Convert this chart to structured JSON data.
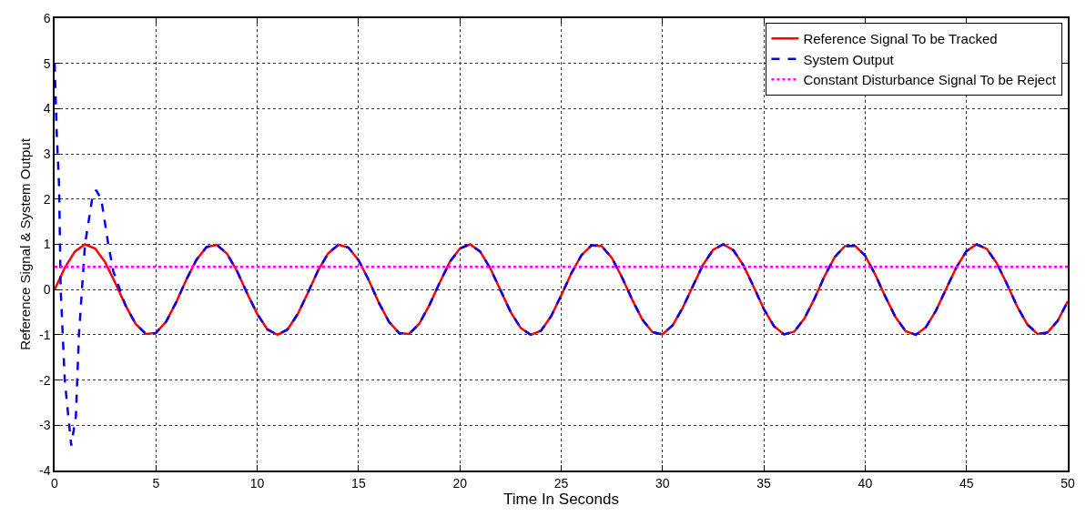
{
  "chart_data": {
    "type": "line",
    "xlabel": "Time In Seconds",
    "ylabel": "Reference Signal & System Output",
    "xlim": [
      0,
      50
    ],
    "xticks": [
      0,
      5,
      10,
      15,
      20,
      25,
      30,
      35,
      40,
      45,
      50
    ],
    "ylim": [
      -4,
      6
    ],
    "yticks": [
      -4,
      -3,
      -2,
      -1,
      0,
      1,
      2,
      3,
      4,
      5,
      6
    ],
    "grid": true,
    "legend": "top right",
    "series": [
      {
        "name": "Reference Signal To be Tracked",
        "color": "#ff0000",
        "line_style": "solid",
        "x": [
          0,
          0.5,
          1,
          1.5,
          2,
          2.5,
          3,
          3.5,
          4,
          4.5,
          5,
          5.5,
          6,
          6.5,
          7,
          7.5,
          8,
          8.5,
          9,
          9.5,
          10,
          10.5,
          11,
          11.5,
          12,
          12.5,
          13,
          13.5,
          14,
          14.5,
          15,
          15.5,
          16,
          16.5,
          17,
          17.5,
          18,
          18.5,
          19,
          19.5,
          20,
          20.5,
          21,
          21.5,
          22,
          22.5,
          23,
          23.5,
          24,
          24.5,
          25,
          25.5,
          26,
          26.5,
          27,
          27.5,
          28,
          28.5,
          29,
          29.5,
          30,
          30.5,
          31,
          31.5,
          32,
          32.5,
          33,
          33.5,
          34,
          34.5,
          35,
          35.5,
          36,
          36.5,
          37,
          37.5,
          38,
          38.5,
          39,
          39.5,
          40,
          40.5,
          41,
          41.5,
          42,
          42.5,
          43,
          43.5,
          44,
          44.5,
          45,
          45.5,
          46,
          46.5,
          47,
          47.5,
          48,
          48.5,
          49,
          49.5,
          50
        ],
        "values": [
          0,
          0.48,
          0.84,
          1.0,
          0.91,
          0.6,
          0.14,
          -0.35,
          -0.76,
          -0.98,
          -0.96,
          -0.71,
          -0.28,
          0.22,
          0.66,
          0.94,
          0.99,
          0.8,
          0.41,
          -0.08,
          -0.54,
          -0.88,
          -1.0,
          -0.88,
          -0.54,
          -0.07,
          0.42,
          0.8,
          0.99,
          0.93,
          0.65,
          0.21,
          -0.29,
          -0.71,
          -0.96,
          -0.98,
          -0.75,
          -0.34,
          0.15,
          0.61,
          0.91,
          1.0,
          0.84,
          0.47,
          -0.01,
          -0.49,
          -0.85,
          -1.0,
          -0.91,
          -0.59,
          -0.13,
          0.36,
          0.76,
          0.98,
          0.96,
          0.7,
          0.27,
          -0.22,
          -0.66,
          -0.94,
          -0.99,
          -0.79,
          -0.4,
          0.08,
          0.55,
          0.88,
          1.0,
          0.87,
          0.53,
          0.06,
          -0.43,
          -0.81,
          -0.99,
          -0.93,
          -0.64,
          -0.2,
          0.3,
          0.72,
          0.96,
          0.97,
          0.75,
          0.33,
          -0.16,
          -0.61,
          -0.92,
          -1.0,
          -0.83,
          -0.46,
          0.02,
          0.49,
          0.85,
          1.0,
          0.9,
          0.58,
          0.12,
          -0.37,
          -0.77,
          -0.98,
          -0.95,
          -0.69,
          -0.26
        ]
      },
      {
        "name": "System Output",
        "color": "#0000ff",
        "line_style": "dashed",
        "x": [
          0,
          0.1,
          0.22,
          0.3,
          0.5,
          0.82,
          1.05,
          1.2,
          1.5,
          1.85,
          2.05,
          2.3,
          2.65,
          2.9,
          3.5,
          4,
          4.5,
          5,
          5.5,
          6,
          6.5,
          7,
          7.5,
          8,
          8.5,
          9,
          9.5,
          10,
          10.5,
          11,
          11.5,
          12,
          12.5,
          13,
          13.5,
          14,
          14.5,
          15,
          15.5,
          16,
          16.5,
          17,
          17.5,
          18,
          18.5,
          19,
          19.5,
          20,
          20.5,
          21,
          21.5,
          22,
          22.5,
          23,
          23.5,
          24,
          24.5,
          25,
          25.5,
          26,
          26.5,
          27,
          27.5,
          28,
          28.5,
          29,
          29.5,
          30,
          30.5,
          31,
          31.5,
          32,
          32.5,
          33,
          33.5,
          34,
          34.5,
          35,
          35.5,
          36,
          36.5,
          37,
          37.5,
          38,
          38.5,
          39,
          39.5,
          40,
          40.5,
          41,
          41.5,
          42,
          42.5,
          43,
          43.5,
          44,
          44.5,
          45,
          45.5,
          46,
          46.5,
          47,
          47.5,
          48,
          48.5,
          49,
          49.5,
          50
        ],
        "values": [
          5,
          3.5,
          2.3,
          0,
          -2,
          -3.45,
          -2.8,
          -1,
          1,
          2,
          2.2,
          2,
          1,
          0.4,
          -0.35,
          -0.76,
          -0.98,
          -0.96,
          -0.71,
          -0.28,
          0.22,
          0.66,
          0.94,
          0.99,
          0.8,
          0.41,
          -0.08,
          -0.54,
          -0.88,
          -1.0,
          -0.88,
          -0.54,
          -0.07,
          0.42,
          0.8,
          0.99,
          0.93,
          0.65,
          0.21,
          -0.29,
          -0.71,
          -0.96,
          -0.98,
          -0.75,
          -0.34,
          0.15,
          0.61,
          0.91,
          1.0,
          0.84,
          0.47,
          -0.01,
          -0.49,
          -0.85,
          -1.0,
          -0.91,
          -0.59,
          -0.13,
          0.36,
          0.76,
          0.98,
          0.96,
          0.7,
          0.27,
          -0.22,
          -0.66,
          -0.94,
          -0.99,
          -0.79,
          -0.4,
          0.08,
          0.55,
          0.88,
          1.0,
          0.87,
          0.53,
          0.06,
          -0.43,
          -0.81,
          -0.99,
          -0.93,
          -0.64,
          -0.2,
          0.3,
          0.72,
          0.96,
          0.97,
          0.75,
          0.33,
          -0.16,
          -0.61,
          -0.92,
          -1.0,
          -0.83,
          -0.46,
          0.02,
          0.49,
          0.85,
          1.0,
          0.9,
          0.58,
          0.12,
          -0.37,
          -0.77,
          -0.98,
          -0.95,
          -0.69,
          -0.26
        ]
      },
      {
        "name": "Constant Disturbance Signal To be Reject",
        "color": "#ff00ff",
        "line_style": "dotted",
        "x": [
          0,
          50
        ],
        "values": [
          0.5,
          0.5
        ]
      }
    ]
  }
}
